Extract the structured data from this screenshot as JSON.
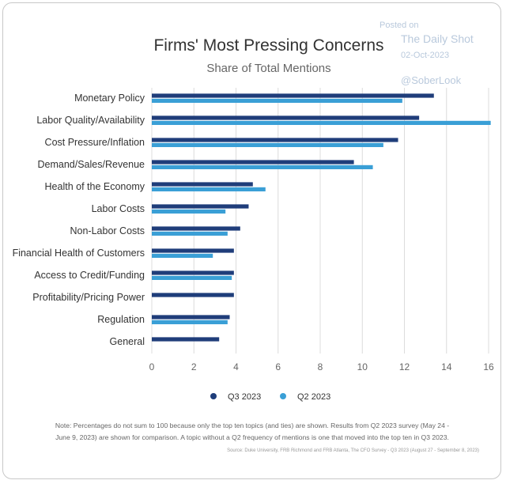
{
  "watermark": {
    "posted_on": "Posted on",
    "outlet": "The Daily Shot",
    "date": "02-Oct-2023",
    "handle": "@SoberLook"
  },
  "chart_data": {
    "type": "bar",
    "orientation": "horizontal",
    "title": "Firms' Most Pressing Concerns",
    "subtitle": "Share of Total Mentions",
    "categories": [
      "Monetary Policy",
      "Labor Quality/Availability",
      "Cost Pressure/Inflation",
      "Demand/Sales/Revenue",
      "Health of the Economy",
      "Labor Costs",
      "Non-Labor Costs",
      "Financial Health of Customers",
      "Access to Credit/Funding",
      "Profitability/Pricing Power",
      "Regulation",
      "General"
    ],
    "series": [
      {
        "name": "Q3 2023",
        "color": "#1f3d7a",
        "values": [
          13.4,
          12.7,
          11.7,
          9.6,
          4.8,
          4.6,
          4.2,
          3.9,
          3.9,
          3.9,
          3.7,
          3.2
        ]
      },
      {
        "name": "Q2 2023",
        "color": "#3a9fd6",
        "values": [
          11.9,
          16.1,
          11.0,
          10.5,
          5.4,
          3.5,
          3.6,
          2.9,
          3.8,
          null,
          3.6,
          null
        ]
      }
    ],
    "xlim": [
      0,
      16
    ],
    "xticks": [
      "0",
      "2",
      "4",
      "6",
      "8",
      "10",
      "12",
      "14",
      "16"
    ],
    "grid": "vertical",
    "legend_position": "bottom-center"
  },
  "footnote": {
    "note_line1": "Note: Percentages do not sum to 100 because only the top ten topics (and ties) are shown. Results from Q2 2023 survey (May 24 -",
    "note_line2": "June 9, 2023) are shown for comparison. A topic without a Q2 frequency of mentions is one that moved into the top ten in Q3 2023.",
    "source": "Source: Duke University, FRB Richmond and FRB Atlanta, The CFO Survey - Q3 2023 (August 27 - September 8, 2023)"
  }
}
